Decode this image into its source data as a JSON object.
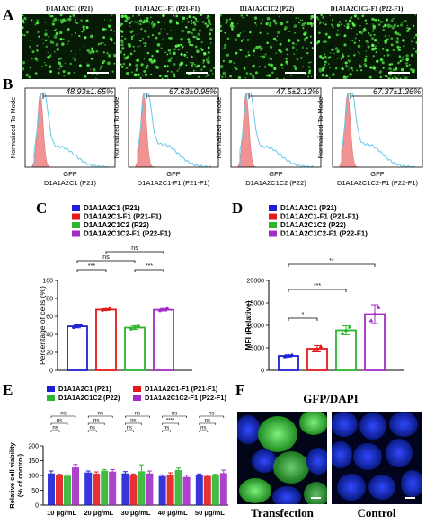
{
  "panels": {
    "A": "A",
    "B": "B",
    "C": "C",
    "D": "D",
    "E": "E",
    "F": "F"
  },
  "panelA": {
    "titles": [
      "D1A1A2C1 (P21)",
      "D1A1A2C1-F1 (P21-F1)",
      "D1A1A2C1C2 (P22)",
      "D1A1A2C1C2-F1 (P22-F1)"
    ]
  },
  "panelB": {
    "ylabel": "Normalized To Mode",
    "xlabel": "GFP",
    "plots": [
      {
        "pct": "48.93±1.65%",
        "name": "D1A1A2C1 (P21)"
      },
      {
        "pct": "67.63±0.98%",
        "name": "D1A1A2C1-F1 (P21-F1)"
      },
      {
        "pct": "47.5±2.13%",
        "name": "D1A1A2C1C2 (P22)"
      },
      {
        "pct": "67.37±1.36%",
        "name": "D1A1A2C1C2-F1 (P22-F1)"
      }
    ],
    "colors": {
      "control": "#f08080",
      "gfp": "#66c8e8"
    }
  },
  "chart_data": [
    {
      "type": "bar",
      "panel": "C",
      "categories": [
        "D1A1A2C1 (P21)",
        "D1A1A2C1-F1 (P21-F1)",
        "D1A1A2C1C2 (P22)",
        "D1A1A2C1C2-F1 (P22-F1)"
      ],
      "values": [
        48.9,
        67.6,
        47.5,
        67.4
      ],
      "errors": [
        1.65,
        0.98,
        2.13,
        1.36
      ],
      "colors": [
        "#1f1fd6",
        "#e31a1c",
        "#2db52d",
        "#a32cc4"
      ],
      "ylabel": "Percentage of cells (%)",
      "ylim": [
        0,
        100
      ],
      "yticks": [
        "0",
        "20",
        "40",
        "60",
        "80",
        "100"
      ],
      "significance": [
        "***",
        "ns",
        "***",
        "ns"
      ],
      "legend": [
        "D1A1A2C1 (P21)",
        "D1A1A2C1-F1 (P21-F1)",
        "D1A1A2C1C2 (P22)",
        "D1A1A2C1C2-F1 (P22-F1)"
      ]
    },
    {
      "type": "bar",
      "panel": "D",
      "categories": [
        "D1A1A2C1 (P21)",
        "D1A1A2C1-F1 (P21-F1)",
        "D1A1A2C1C2 (P22)",
        "D1A1A2C1C2-F1 (P22-F1)"
      ],
      "values": [
        3200,
        4800,
        8900,
        12500
      ],
      "errors": [
        250,
        700,
        1000,
        2100
      ],
      "colors": [
        "#1f1fd6",
        "#e31a1c",
        "#2db52d",
        "#a32cc4"
      ],
      "ylabel": "MFI (Relative)",
      "ylim": [
        0,
        20000
      ],
      "yticks": [
        "0",
        "5000",
        "10000",
        "15000",
        "20000"
      ],
      "significance": [
        "*",
        "***",
        "**"
      ],
      "legend": [
        "D1A1A2C1 (P21)",
        "D1A1A2C1-F1 (P21-F1)",
        "D1A1A2C1C2 (P22)",
        "D1A1A2C1C2-F1 (P22-F1)"
      ]
    },
    {
      "type": "bar",
      "panel": "E",
      "categories": [
        "10 μg/mL",
        "20 μg/mL",
        "30 μg/mL",
        "40 μg/mL",
        "50 μg/mL"
      ],
      "series": [
        {
          "name": "D1A1A2C1 (P21)",
          "values": [
            107,
            110,
            107,
            98,
            102
          ],
          "errors": [
            8,
            5,
            6,
            4,
            3
          ]
        },
        {
          "name": "D1A1A2C1-F1 (P21-F1)",
          "values": [
            100,
            106,
            100,
            101,
            98
          ],
          "errors": [
            4,
            6,
            5,
            8,
            3
          ]
        },
        {
          "name": "D1A1A2C1C2 (P22)",
          "values": [
            99,
            116,
            114,
            118,
            100
          ],
          "errors": [
            3,
            4,
            22,
            7,
            4
          ]
        },
        {
          "name": "D1A1A2C1C2-F1 (P22-F1)",
          "values": [
            127,
            113,
            107,
            95,
            108
          ],
          "errors": [
            10,
            7,
            8,
            6,
            10
          ]
        }
      ],
      "colors": [
        "#1f1fd6",
        "#e31a1c",
        "#2db52d",
        "#a32cc4"
      ],
      "ylabel": "Relative cell viability (% of control)",
      "ylim": [
        0,
        200
      ],
      "yticks": [
        "0",
        "50",
        "100",
        "150",
        "200"
      ],
      "significance": [
        [
          "ns",
          "ns",
          "ns"
        ],
        [
          "ns",
          "ns",
          "ns"
        ],
        [
          "ns",
          "ns",
          "ns"
        ],
        [
          "ns",
          "****",
          "ns"
        ],
        [
          "ns",
          "ns",
          "ns"
        ]
      ]
    }
  ],
  "panelE_labels": {
    "ylabel1": "Relative cell viability",
    "ylabel2": "(% of control)"
  },
  "panelF": {
    "title": "GFP/DAPI",
    "left_label": "Transfection",
    "right_label": "Control"
  }
}
